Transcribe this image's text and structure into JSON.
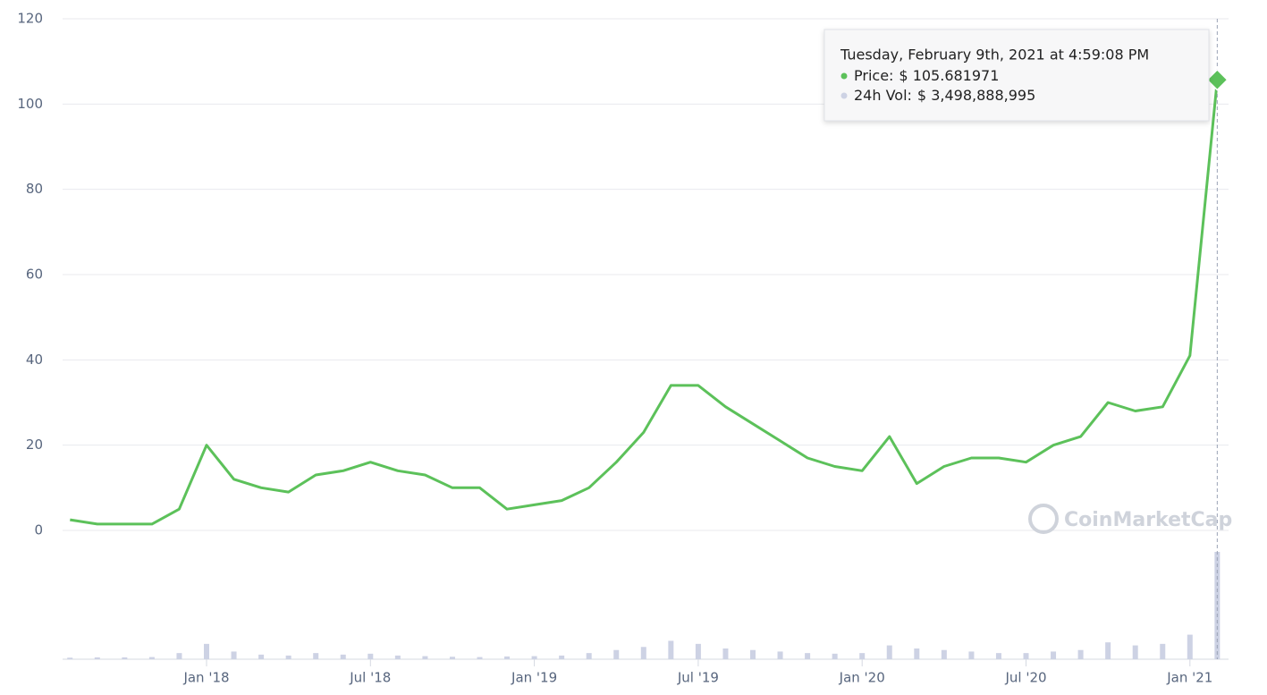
{
  "chart_data": {
    "type": "line",
    "x": [
      "2017-08",
      "2017-09",
      "2017-10",
      "2017-11",
      "2017-12",
      "2018-01",
      "2018-02",
      "2018-03",
      "2018-04",
      "2018-05",
      "2018-06",
      "2018-07",
      "2018-08",
      "2018-09",
      "2018-10",
      "2018-11",
      "2018-12",
      "2019-01",
      "2019-02",
      "2019-03",
      "2019-04",
      "2019-05",
      "2019-06",
      "2019-07",
      "2019-08",
      "2019-09",
      "2019-10",
      "2019-11",
      "2019-12",
      "2020-01",
      "2020-02",
      "2020-03",
      "2020-04",
      "2020-05",
      "2020-06",
      "2020-07",
      "2020-08",
      "2020-09",
      "2020-10",
      "2020-11",
      "2020-12",
      "2021-01",
      "2021-02"
    ],
    "series": [
      {
        "color": "#5cc15a",
        "values": [
          2.5,
          1.5,
          1.5,
          1.5,
          5,
          20,
          12,
          10,
          9,
          13,
          14,
          16,
          14,
          13,
          10,
          10,
          5,
          6,
          7,
          10,
          16,
          23,
          34,
          34,
          29,
          25,
          21,
          17,
          15,
          14,
          22,
          11,
          15,
          17,
          17,
          16,
          20,
          22,
          30,
          28,
          29,
          41,
          105.681971
        ]
      },
      {
        "color": "#cdd2e4",
        "axis": "volume",
        "values": [
          50000000,
          60000000,
          60000000,
          70000000,
          200000000,
          500000000,
          250000000,
          150000000,
          120000000,
          200000000,
          150000000,
          180000000,
          120000000,
          100000000,
          80000000,
          70000000,
          90000000,
          100000000,
          120000000,
          200000000,
          300000000,
          400000000,
          600000000,
          500000000,
          350000000,
          300000000,
          250000000,
          200000000,
          180000000,
          200000000,
          450000000,
          350000000,
          300000000,
          250000000,
          200000000,
          200000000,
          250000000,
          300000000,
          550000000,
          450000000,
          500000000,
          800000000,
          3498888995
        ]
      }
    ],
    "ylim": [
      0,
      120
    ],
    "yticks": [
      0,
      20,
      40,
      60,
      80,
      100,
      120
    ],
    "xticks": [
      {
        "value": "2018-01",
        "label": "Jan '18"
      },
      {
        "value": "2018-07",
        "label": "Jul '18"
      },
      {
        "value": "2019-01",
        "label": "Jan '19"
      },
      {
        "value": "2019-07",
        "label": "Jul '19"
      },
      {
        "value": "2020-01",
        "label": "Jan '20"
      },
      {
        "value": "2020-07",
        "label": "Jul '20"
      },
      {
        "value": "2021-01",
        "label": "Jan '21"
      }
    ],
    "grid": true,
    "watermark": "CoinMarketCap",
    "tooltip": {
      "title": "Tuesday, February 9th, 2021 at 4:59:08 PM",
      "items": [
        {
          "label": "Price:",
          "value": "$ 105.681971"
        },
        {
          "label": "24h Vol:",
          "value": "$ 3,498,888,995"
        }
      ]
    }
  }
}
